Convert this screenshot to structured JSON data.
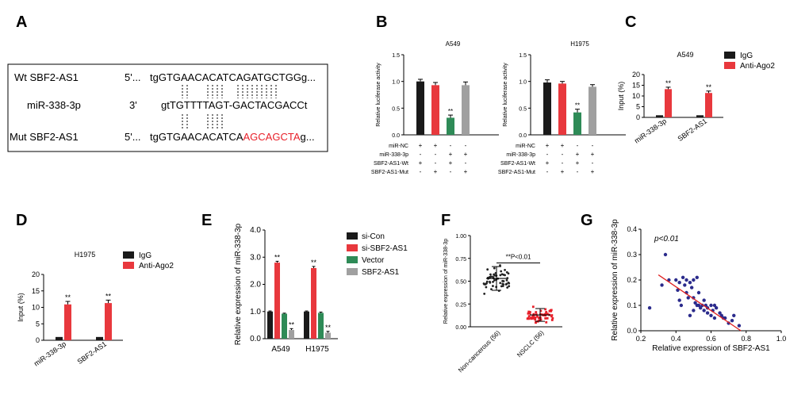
{
  "panel_labels": {
    "A": "A",
    "B": "B",
    "C": "C",
    "D": "D",
    "E": "E",
    "F": "F",
    "G": "G"
  },
  "sequences": {
    "rows": [
      {
        "name": "Wt SBF2-AS1",
        "prime": "5'...",
        "seq_black": "tgGTGAACACATCAGATGCTGGg...",
        "seq_red": "",
        "seq_tail": ""
      },
      {
        "name": "miR-338-3p",
        "prime": "3'",
        "seq_black": "gtTGTTTTAGT-GACTACGACCt",
        "seq_red": "",
        "seq_tail": ""
      },
      {
        "name": "Mut SBF2-AS1",
        "prime": "5'...",
        "seq_black": "tgGTGAACACATCA",
        "seq_red": "AGCAGCTA",
        "seq_tail": "g..."
      }
    ],
    "mut_color": "#e8202a"
  },
  "colors": {
    "black": "#1a1a1a",
    "red": "#e8383d",
    "green": "#2e8b57",
    "gray": "#a0a0a0",
    "scatter_black": "#222222",
    "scatter_red": "#e8202a",
    "point_blue": "#2b2b8c",
    "line_red": "#e02020"
  },
  "chart_data": [
    {
      "id": "B-left",
      "type": "bar",
      "title": "A549",
      "ylabel": "Relative luciferase activity",
      "ylim": [
        0,
        1.5
      ],
      "yticks": [
        "0.0",
        "0.5",
        "1.0",
        "1.5"
      ],
      "values": [
        1.0,
        0.93,
        0.32,
        0.93
      ],
      "errors": [
        0.04,
        0.05,
        0.05,
        0.06
      ],
      "sig": [
        "",
        "",
        "**",
        ""
      ],
      "condition_rows": [
        {
          "label": "miR-NC",
          "marks": [
            "+",
            "+",
            "-",
            "-"
          ]
        },
        {
          "label": "miR-338-3p",
          "marks": [
            "-",
            "-",
            "+",
            "+"
          ]
        },
        {
          "label": "SBF2-AS1-Wt",
          "marks": [
            "+",
            "-",
            "+",
            "-"
          ]
        },
        {
          "label": "SBF2-AS1-Mut",
          "marks": [
            "-",
            "+",
            "-",
            "+"
          ]
        }
      ]
    },
    {
      "id": "B-right",
      "type": "bar",
      "title": "H1975",
      "ylabel": "Relative luciferase activity",
      "ylim": [
        0,
        1.5
      ],
      "yticks": [
        "0.0",
        "0.5",
        "1.0",
        "1.5"
      ],
      "values": [
        0.98,
        0.96,
        0.42,
        0.9
      ],
      "errors": [
        0.05,
        0.04,
        0.06,
        0.04
      ],
      "sig": [
        "",
        "",
        "**",
        ""
      ],
      "condition_rows": [
        {
          "label": "miR-NC",
          "marks": [
            "+",
            "+",
            "-",
            "-"
          ]
        },
        {
          "label": "miR-338-3p",
          "marks": [
            "-",
            "-",
            "+",
            "+"
          ]
        },
        {
          "label": "SBF2-AS1-Wt",
          "marks": [
            "+",
            "-",
            "+",
            "-"
          ]
        },
        {
          "label": "SBF2-AS1-Mut",
          "marks": [
            "-",
            "+",
            "-",
            "+"
          ]
        }
      ]
    },
    {
      "id": "C",
      "type": "bar",
      "title": "A549",
      "ylabel": "Input (%)",
      "ylim": [
        0,
        20
      ],
      "yticks": [
        "0",
        "5",
        "10",
        "15",
        "20"
      ],
      "categories": [
        "miR-338-3p",
        "SBF2-AS1"
      ],
      "series": [
        {
          "name": "IgG",
          "values": [
            1.0,
            1.0
          ],
          "errors": [
            0,
            0
          ],
          "sig": [
            "",
            ""
          ]
        },
        {
          "name": "Anti-Ago2",
          "values": [
            13.2,
            11.4
          ],
          "errors": [
            0.9,
            0.9
          ],
          "sig": [
            "**",
            "**"
          ]
        }
      ]
    },
    {
      "id": "D",
      "type": "bar",
      "title": "H1975",
      "ylabel": "Input (%)",
      "ylim": [
        0,
        20
      ],
      "yticks": [
        "0",
        "5",
        "10",
        "15",
        "20"
      ],
      "categories": [
        "miR-338-3p",
        "SBF2-AS1"
      ],
      "series": [
        {
          "name": "IgG",
          "values": [
            1.0,
            1.0
          ],
          "errors": [
            0,
            0
          ],
          "sig": [
            "",
            ""
          ]
        },
        {
          "name": "Anti-Ago2",
          "values": [
            10.9,
            11.3
          ],
          "errors": [
            0.9,
            0.9
          ],
          "sig": [
            "**",
            "**"
          ]
        }
      ]
    },
    {
      "id": "E",
      "type": "bar",
      "ylabel": "Relative expression of miR-338-3p",
      "ylim": [
        0,
        4.0
      ],
      "yticks": [
        "0.0",
        "1.0",
        "2.0",
        "3.0",
        "4.0"
      ],
      "categories": [
        "A549",
        "H1975"
      ],
      "series": [
        {
          "name": "si-Con",
          "values": [
            1.0,
            1.0
          ],
          "errors": [
            0.02,
            0.02
          ],
          "sig": [
            "",
            ""
          ]
        },
        {
          "name": "si-SBF2-AS1",
          "values": [
            2.8,
            2.6
          ],
          "errors": [
            0.05,
            0.06
          ],
          "sig": [
            "**",
            "**"
          ]
        },
        {
          "name": "Vector",
          "values": [
            0.92,
            0.95
          ],
          "errors": [
            0.02,
            0.03
          ],
          "sig": [
            "",
            ""
          ]
        },
        {
          "name": "SBF2-AS1",
          "values": [
            0.32,
            0.22
          ],
          "errors": [
            0.05,
            0.05
          ],
          "sig": [
            "**",
            "**"
          ]
        }
      ]
    },
    {
      "id": "F",
      "type": "scatter",
      "ylabel": "Relative expression of miR-338-3p",
      "ylim": [
        0,
        1.0
      ],
      "yticks": [
        "0.00",
        "0.25",
        "0.50",
        "0.75",
        "1.00"
      ],
      "categories": [
        "Non-cancerous (56)",
        "NSCLC (56)"
      ],
      "means": [
        0.53,
        0.13
      ],
      "sds": [
        0.13,
        0.07
      ],
      "annotation": "**P<0.01"
    },
    {
      "id": "G",
      "type": "scatter",
      "annotation": "p<0.01",
      "xlabel": "Relative expression of SBF2-AS1",
      "ylabel": "Relative expression of miR-338-3p",
      "xlim": [
        0.2,
        1.0
      ],
      "ylim": [
        0,
        0.4
      ],
      "xticks": [
        "0.2",
        "0.4",
        "0.6",
        "0.8",
        "1.0"
      ],
      "yticks": [
        "0.0",
        "0.1",
        "0.2",
        "0.3",
        "0.4"
      ],
      "points": [
        [
          0.25,
          0.09
        ],
        [
          0.32,
          0.18
        ],
        [
          0.34,
          0.3
        ],
        [
          0.36,
          0.2
        ],
        [
          0.4,
          0.2
        ],
        [
          0.41,
          0.16
        ],
        [
          0.42,
          0.12
        ],
        [
          0.42,
          0.19
        ],
        [
          0.43,
          0.1
        ],
        [
          0.44,
          0.21
        ],
        [
          0.45,
          0.18
        ],
        [
          0.46,
          0.2
        ],
        [
          0.46,
          0.15
        ],
        [
          0.47,
          0.13
        ],
        [
          0.48,
          0.19
        ],
        [
          0.48,
          0.06
        ],
        [
          0.49,
          0.17
        ],
        [
          0.5,
          0.13
        ],
        [
          0.5,
          0.2
        ],
        [
          0.5,
          0.08
        ],
        [
          0.51,
          0.11
        ],
        [
          0.52,
          0.21
        ],
        [
          0.52,
          0.1
        ],
        [
          0.53,
          0.15
        ],
        [
          0.53,
          0.1
        ],
        [
          0.54,
          0.09
        ],
        [
          0.55,
          0.1
        ],
        [
          0.56,
          0.12
        ],
        [
          0.56,
          0.08
        ],
        [
          0.57,
          0.1
        ],
        [
          0.58,
          0.09
        ],
        [
          0.58,
          0.07
        ],
        [
          0.6,
          0.1
        ],
        [
          0.6,
          0.06
        ],
        [
          0.61,
          0.08
        ],
        [
          0.62,
          0.1
        ],
        [
          0.62,
          0.05
        ],
        [
          0.63,
          0.09
        ],
        [
          0.65,
          0.07
        ],
        [
          0.66,
          0.06
        ],
        [
          0.67,
          0.05
        ],
        [
          0.68,
          0.05
        ],
        [
          0.7,
          0.03
        ],
        [
          0.72,
          0.04
        ],
        [
          0.73,
          0.06
        ],
        [
          0.76,
          0.02
        ]
      ],
      "fit": [
        [
          0.3,
          0.22
        ],
        [
          0.77,
          0.0
        ]
      ]
    }
  ]
}
